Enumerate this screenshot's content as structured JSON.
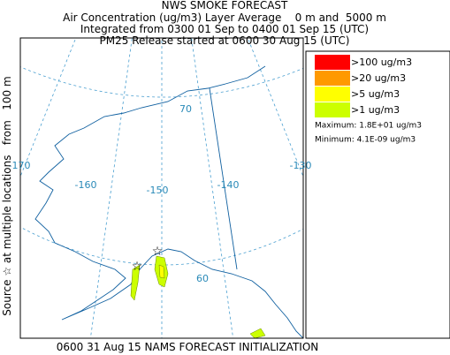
{
  "header": {
    "title": "NWS SMOKE FORECAST",
    "lines": [
      "Air Concentration (ug/m3) Layer Average    0 m and  5000 m",
      "Integrated from 0300 01 Sep to 0400 01 Sep 15 (UTC)",
      "PM25 Release started at 0600 30 Aug 15 (UTC)"
    ]
  },
  "side_label": "Source ☆ at multiple locations   from   100 m",
  "footer": "0600 31 Aug 15 NAMS FORECAST INITIALIZATION",
  "map": {
    "grid_labels": [
      "70",
      "-170",
      "-160",
      "-150",
      "-140",
      "-130",
      "60"
    ]
  },
  "legend": {
    "entries": [
      {
        "label": ">100 ug/m3",
        "color": "#ff0000"
      },
      {
        "label": ">20 ug/m3",
        "color": "#ff9900"
      },
      {
        "label": ">5 ug/m3",
        "color": "#ffff00"
      },
      {
        "label": ">1 ug/m3",
        "color": "#ccff00"
      }
    ],
    "maximum": "Maximum: 1.8E+01 ug/m3",
    "minimum": "Minimum: 4.1E-09 ug/m3"
  }
}
